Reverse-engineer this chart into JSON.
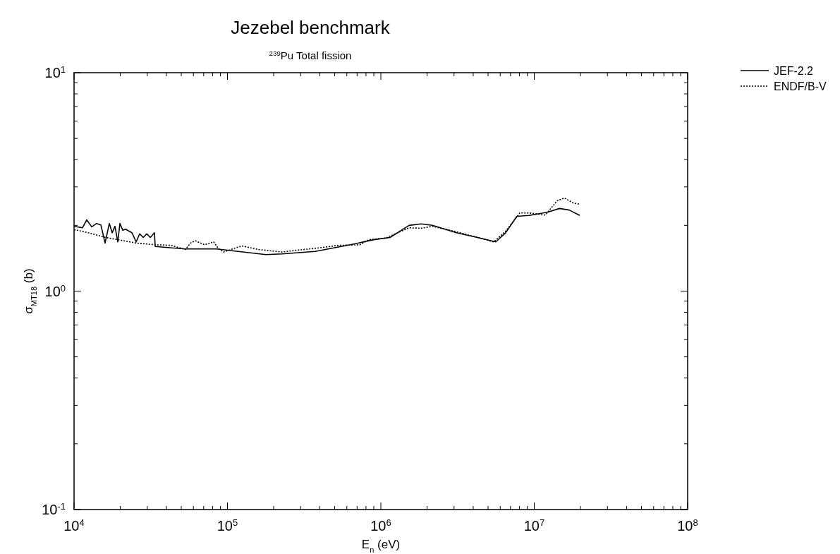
{
  "chart_data": {
    "type": "line",
    "title": "Jezebel benchmark",
    "subtitle": "$^{239}$Pu Total fission",
    "xlabel": "E$_{n}$ (eV)",
    "ylabel": "σ$_{MT18}$ (b)",
    "log": "xy",
    "xlim": [
      10000,
      100000000
    ],
    "ylim": [
      0.1,
      10
    ],
    "xticks": [
      {
        "value": 10000,
        "label": "10$^{4}$"
      },
      {
        "value": 20000,
        "label": null
      },
      {
        "value": 30000,
        "label": null
      },
      {
        "value": 40000,
        "label": null
      },
      {
        "value": 50000,
        "label": null
      },
      {
        "value": 60000,
        "label": null
      },
      {
        "value": 70000,
        "label": null
      },
      {
        "value": 80000,
        "label": null
      },
      {
        "value": 90000,
        "label": null
      },
      {
        "value": 100000,
        "label": "10$^{5}$"
      },
      {
        "value": 200000,
        "label": null
      },
      {
        "value": 300000,
        "label": null
      },
      {
        "value": 400000,
        "label": null
      },
      {
        "value": 500000,
        "label": null
      },
      {
        "value": 600000,
        "label": null
      },
      {
        "value": 700000,
        "label": null
      },
      {
        "value": 800000,
        "label": null
      },
      {
        "value": 900000,
        "label": null
      },
      {
        "value": 1000000,
        "label": "10$^{6}$"
      },
      {
        "value": 2000000,
        "label": null
      },
      {
        "value": 3000000,
        "label": null
      },
      {
        "value": 4000000,
        "label": null
      },
      {
        "value": 5000000,
        "label": null
      },
      {
        "value": 6000000,
        "label": null
      },
      {
        "value": 7000000,
        "label": null
      },
      {
        "value": 8000000,
        "label": null
      },
      {
        "value": 9000000,
        "label": null
      },
      {
        "value": 10000000,
        "label": "10$^{7}$"
      },
      {
        "value": 20000000,
        "label": null
      },
      {
        "value": 30000000,
        "label": null
      },
      {
        "value": 40000000,
        "label": null
      },
      {
        "value": 50000000,
        "label": null
      },
      {
        "value": 60000000,
        "label": null
      },
      {
        "value": 70000000,
        "label": null
      },
      {
        "value": 80000000,
        "label": null
      },
      {
        "value": 90000000,
        "label": null
      },
      {
        "value": 100000000,
        "label": "10$^{8}$"
      }
    ],
    "yticks": [
      {
        "value": 0.1,
        "label": "10$^{-1}$"
      },
      {
        "value": 0.2,
        "label": null
      },
      {
        "value": 0.3,
        "label": null
      },
      {
        "value": 0.4,
        "label": null
      },
      {
        "value": 0.5,
        "label": null
      },
      {
        "value": 0.6,
        "label": null
      },
      {
        "value": 0.7,
        "label": null
      },
      {
        "value": 0.8,
        "label": null
      },
      {
        "value": 0.9,
        "label": null
      },
      {
        "value": 1,
        "label": "10$^{0}$"
      },
      {
        "value": 2,
        "label": null
      },
      {
        "value": 3,
        "label": null
      },
      {
        "value": 4,
        "label": null
      },
      {
        "value": 5,
        "label": null
      },
      {
        "value": 6,
        "label": null
      },
      {
        "value": 7,
        "label": null
      },
      {
        "value": 8,
        "label": null
      },
      {
        "value": 9,
        "label": null
      },
      {
        "value": 10,
        "label": "10$^{1}$"
      }
    ],
    "grid": false,
    "legend": "top right",
    "series": [
      {
        "name": "JEF-2.2",
        "color": "#000000",
        "line_style": "solid",
        "x": [
          10000,
          11350,
          12100,
          13030,
          14030,
          14950,
          15930,
          16980,
          17720,
          18480,
          19280,
          19910,
          20770,
          21660,
          23840,
          25400,
          26780,
          28250,
          29790,
          31410,
          33440,
          33800,
          53200,
          84900,
          178000,
          227000,
          373000,
          634000,
          899000,
          1148000,
          1528000,
          1829000,
          2166000,
          3105000,
          4403000,
          5613000,
          6510000,
          7710000,
          9240000,
          12300000,
          14600000,
          16900000,
          19800000
        ],
        "values": [
          1.98,
          1.95,
          2.12,
          1.97,
          2.04,
          2.01,
          1.66,
          2.04,
          1.85,
          1.98,
          1.68,
          2.04,
          1.9,
          1.92,
          1.85,
          1.68,
          1.83,
          1.76,
          1.83,
          1.76,
          1.85,
          1.6,
          1.56,
          1.56,
          1.47,
          1.48,
          1.52,
          1.63,
          1.72,
          1.76,
          2.0,
          2.03,
          2.0,
          1.85,
          1.75,
          1.68,
          1.85,
          2.2,
          2.22,
          2.3,
          2.39,
          2.35,
          2.22
        ]
      },
      {
        "name": "ENDF/B-V",
        "color": "#000000",
        "line_style": "dotted",
        "x": [
          10000,
          11350,
          16110,
          25400,
          33800,
          43000,
          53200,
          57400,
          61800,
          70900,
          81300,
          87600,
          94400,
          108000,
          124000,
          160000,
          227000,
          261000,
          373000,
          529000,
          728000,
          835000,
          1077000,
          1528000,
          1829000,
          2166000,
          3105000,
          4403000,
          5444000,
          6510000,
          8050000,
          9240000,
          11800000,
          14100000,
          15700000,
          18000000,
          19800000
        ],
        "values": [
          1.91,
          1.88,
          1.76,
          1.66,
          1.63,
          1.62,
          1.55,
          1.66,
          1.7,
          1.63,
          1.68,
          1.56,
          1.51,
          1.56,
          1.61,
          1.55,
          1.51,
          1.53,
          1.57,
          1.62,
          1.63,
          1.72,
          1.75,
          1.95,
          1.94,
          1.98,
          1.87,
          1.75,
          1.68,
          1.88,
          2.28,
          2.28,
          2.23,
          2.59,
          2.67,
          2.53,
          2.5
        ]
      }
    ]
  }
}
